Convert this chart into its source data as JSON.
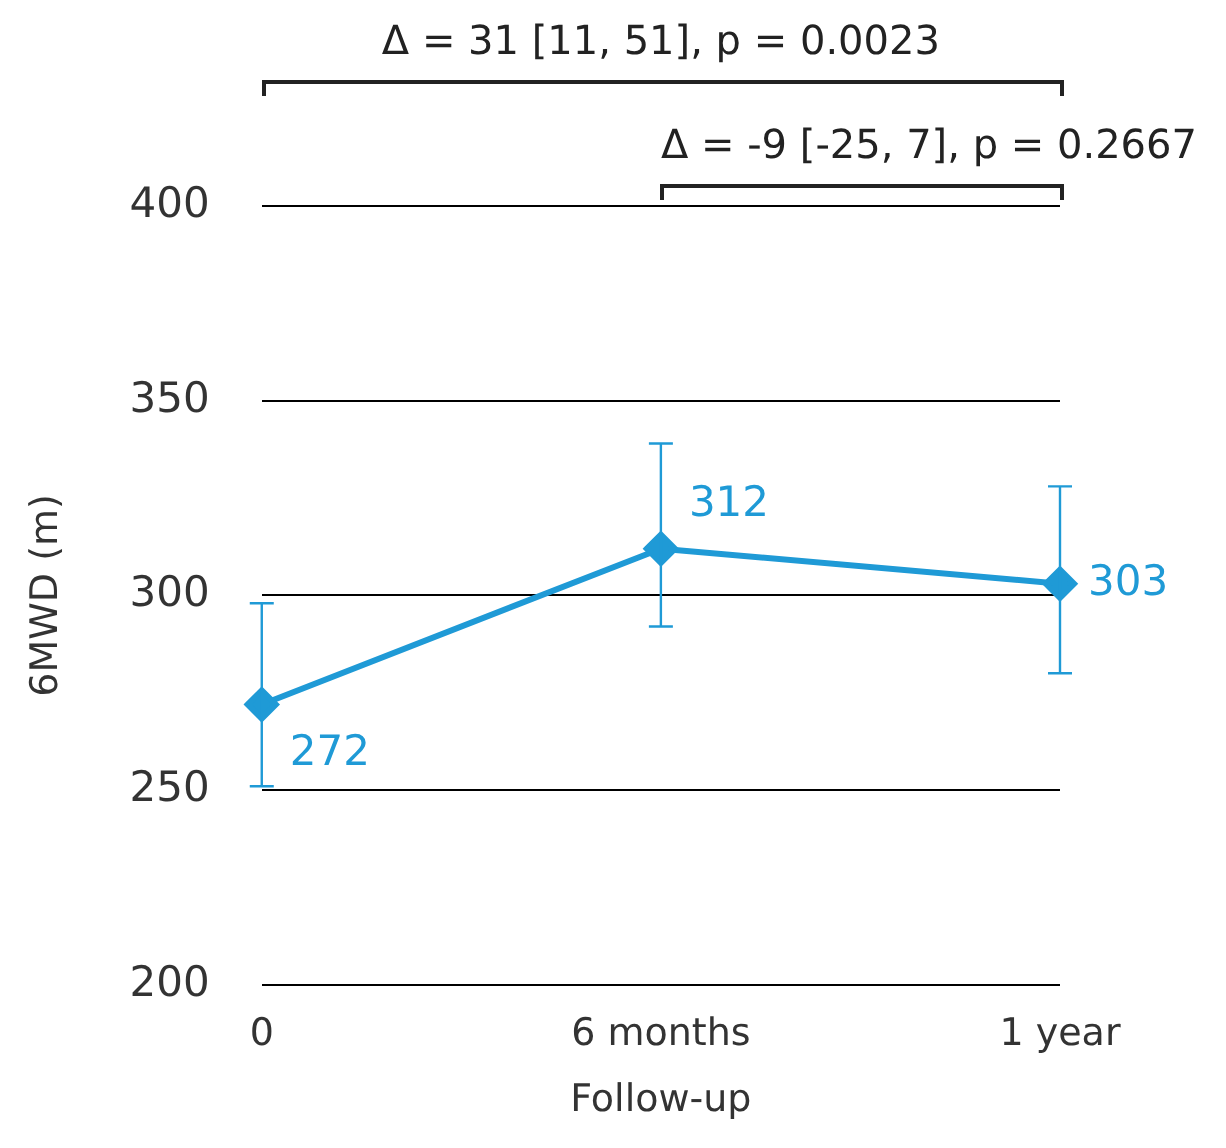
{
  "chart_data": {
    "type": "line",
    "xlabel": "Follow-up",
    "ylabel": "6MWD (m)",
    "categories": [
      "0",
      "6 months",
      "1 year"
    ],
    "series": [
      {
        "color": "#1f9ad6",
        "values": [
          272,
          312,
          303
        ],
        "errors": [
          [
            251,
            298
          ],
          [
            292,
            339
          ],
          [
            280,
            328
          ]
        ]
      }
    ],
    "ylim": [
      200,
      400
    ],
    "yticks": [
      200,
      250,
      300,
      350,
      400
    ],
    "grid": "y",
    "legend": false,
    "marker": "diamond",
    "data_labels": true,
    "annotations": [
      "Δ = 31 [11, 51], p = 0.0023",
      "Δ = -9 [-25, 7], p = 0.2667"
    ]
  }
}
